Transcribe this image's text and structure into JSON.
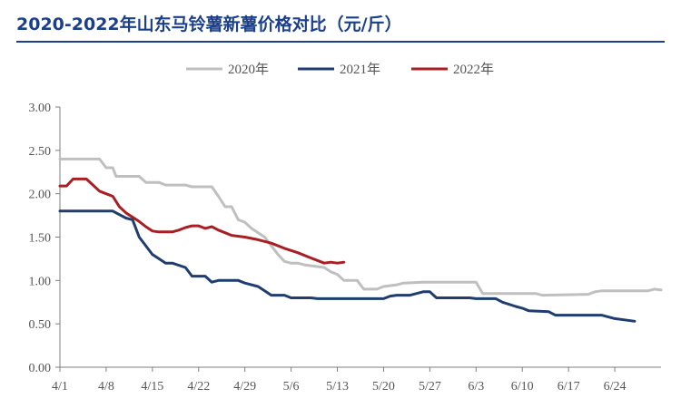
{
  "chart_data": {
    "type": "line",
    "title": "2020-2022年山东马铃薯新薯价格对比（元/斤）",
    "xlabel": "",
    "ylabel": "",
    "ylim": [
      0,
      3
    ],
    "yticks": [
      "0.00",
      "0.50",
      "1.00",
      "1.50",
      "2.00",
      "2.50",
      "3.00"
    ],
    "x_range_days": [
      0,
      91
    ],
    "xticks": [
      {
        "label": "4/1",
        "day": 0
      },
      {
        "label": "4/8",
        "day": 7
      },
      {
        "label": "4/15",
        "day": 14
      },
      {
        "label": "4/22",
        "day": 21
      },
      {
        "label": "4/29",
        "day": 28
      },
      {
        "label": "5/6",
        "day": 35
      },
      {
        "label": "5/13",
        "day": 42
      },
      {
        "label": "5/20",
        "day": 49
      },
      {
        "label": "5/27",
        "day": 56
      },
      {
        "label": "6/3",
        "day": 63
      },
      {
        "label": "6/10",
        "day": 70
      },
      {
        "label": "6/17",
        "day": 77
      },
      {
        "label": "6/24",
        "day": 84
      }
    ],
    "grid": false,
    "legend_position": "top",
    "series": [
      {
        "name": "2020年",
        "color": "#bfbfbf",
        "points": [
          [
            0,
            2.4
          ],
          [
            6,
            2.4
          ],
          [
            7,
            2.3
          ],
          [
            8,
            2.3
          ],
          [
            8.5,
            2.2
          ],
          [
            12,
            2.2
          ],
          [
            13,
            2.13
          ],
          [
            15,
            2.13
          ],
          [
            16,
            2.1
          ],
          [
            19,
            2.1
          ],
          [
            20,
            2.08
          ],
          [
            23,
            2.08
          ],
          [
            24,
            1.97
          ],
          [
            25,
            1.85
          ],
          [
            26,
            1.85
          ],
          [
            27,
            1.7
          ],
          [
            28,
            1.67
          ],
          [
            29,
            1.6
          ],
          [
            31,
            1.5
          ],
          [
            32,
            1.4
          ],
          [
            33,
            1.3
          ],
          [
            34,
            1.22
          ],
          [
            35,
            1.2
          ],
          [
            36,
            1.2
          ],
          [
            37,
            1.18
          ],
          [
            40,
            1.15
          ],
          [
            41,
            1.1
          ],
          [
            42,
            1.07
          ],
          [
            43,
            1.0
          ],
          [
            45,
            1.0
          ],
          [
            46,
            0.9
          ],
          [
            48,
            0.9
          ],
          [
            49,
            0.93
          ],
          [
            51,
            0.95
          ],
          [
            52,
            0.97
          ],
          [
            55,
            0.98
          ],
          [
            63,
            0.98
          ],
          [
            64,
            0.85
          ],
          [
            72,
            0.85
          ],
          [
            73,
            0.83
          ],
          [
            80,
            0.84
          ],
          [
            81,
            0.87
          ],
          [
            82,
            0.88
          ],
          [
            89,
            0.88
          ],
          [
            90,
            0.9
          ],
          [
            91,
            0.89
          ]
        ]
      },
      {
        "name": "2021年",
        "color": "#1f3d6e",
        "points": [
          [
            0,
            1.8
          ],
          [
            8,
            1.8
          ],
          [
            10,
            1.72
          ],
          [
            11,
            1.7
          ],
          [
            12,
            1.5
          ],
          [
            13,
            1.4
          ],
          [
            14,
            1.3
          ],
          [
            15,
            1.25
          ],
          [
            16,
            1.2
          ],
          [
            17,
            1.2
          ],
          [
            19,
            1.15
          ],
          [
            20,
            1.05
          ],
          [
            22,
            1.05
          ],
          [
            23,
            0.98
          ],
          [
            24,
            1.0
          ],
          [
            27,
            1.0
          ],
          [
            28,
            0.97
          ],
          [
            30,
            0.93
          ],
          [
            31,
            0.88
          ],
          [
            32,
            0.83
          ],
          [
            34,
            0.83
          ],
          [
            35,
            0.8
          ],
          [
            38,
            0.8
          ],
          [
            39,
            0.79
          ],
          [
            49,
            0.79
          ],
          [
            50,
            0.82
          ],
          [
            51,
            0.83
          ],
          [
            53,
            0.83
          ],
          [
            55,
            0.87
          ],
          [
            56,
            0.87
          ],
          [
            57,
            0.8
          ],
          [
            62,
            0.8
          ],
          [
            63,
            0.79
          ],
          [
            66,
            0.79
          ],
          [
            67,
            0.75
          ],
          [
            69,
            0.7
          ],
          [
            70,
            0.68
          ],
          [
            71,
            0.65
          ],
          [
            74,
            0.64
          ],
          [
            75,
            0.6
          ],
          [
            82,
            0.6
          ],
          [
            84,
            0.56
          ],
          [
            86,
            0.54
          ],
          [
            87,
            0.53
          ]
        ]
      },
      {
        "name": "2022年",
        "color": "#a81e22",
        "points": [
          [
            0,
            2.09
          ],
          [
            1,
            2.09
          ],
          [
            2,
            2.17
          ],
          [
            4,
            2.17
          ],
          [
            5,
            2.1
          ],
          [
            6,
            2.03
          ],
          [
            7,
            2.0
          ],
          [
            8,
            1.97
          ],
          [
            9,
            1.85
          ],
          [
            10,
            1.78
          ],
          [
            11,
            1.73
          ],
          [
            12,
            1.68
          ],
          [
            13,
            1.62
          ],
          [
            14,
            1.57
          ],
          [
            15,
            1.56
          ],
          [
            17,
            1.56
          ],
          [
            18,
            1.58
          ],
          [
            19,
            1.61
          ],
          [
            20,
            1.63
          ],
          [
            21,
            1.63
          ],
          [
            22,
            1.6
          ],
          [
            23,
            1.62
          ],
          [
            24,
            1.58
          ],
          [
            25,
            1.55
          ],
          [
            26,
            1.52
          ],
          [
            28,
            1.5
          ],
          [
            30,
            1.47
          ],
          [
            32,
            1.43
          ],
          [
            34,
            1.37
          ],
          [
            36,
            1.32
          ],
          [
            38,
            1.26
          ],
          [
            39,
            1.23
          ],
          [
            40,
            1.2
          ],
          [
            41,
            1.21
          ],
          [
            42,
            1.2
          ],
          [
            43,
            1.21
          ]
        ]
      }
    ]
  },
  "colors": {
    "title": "#1b3f8b",
    "axis": "#7f7f7f"
  }
}
